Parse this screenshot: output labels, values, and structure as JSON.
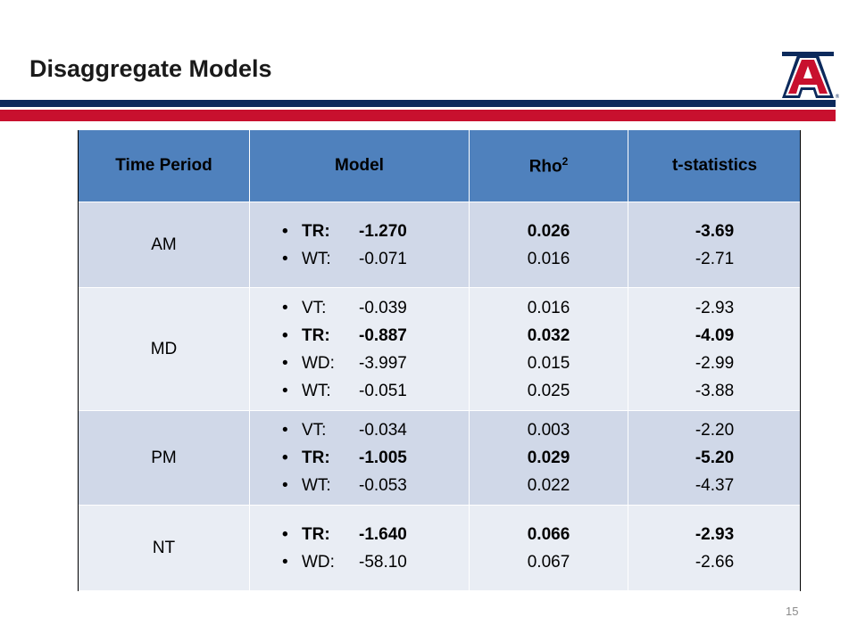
{
  "slide": {
    "title": "Disaggregate Models",
    "page_number": "15",
    "colors": {
      "navy": "#0c2a5c",
      "red": "#c8102e",
      "header_blue": "#4f81bd",
      "row_dark": "#d0d8e8",
      "row_light": "#e9edf4"
    },
    "logo": {
      "icon": "university-of-arizona-block-a-logo",
      "text": "A"
    }
  },
  "table": {
    "headers": {
      "time_period": "Time Period",
      "model": "Model",
      "rho": "Rho",
      "rho_sup": "2",
      "t_stat": "t-statistics"
    },
    "rows": [
      {
        "period": "AM",
        "entries": [
          {
            "label": "TR:",
            "coef": "-1.270",
            "rho": "0.026",
            "t": "-3.69",
            "bold": true
          },
          {
            "label": "WT:",
            "coef": "-0.071",
            "rho": "0.016",
            "t": "-2.71",
            "bold": false
          }
        ]
      },
      {
        "period": "MD",
        "entries": [
          {
            "label": "VT:",
            "coef": "-0.039",
            "rho": "0.016",
            "t": "-2.93",
            "bold": false
          },
          {
            "label": "TR:",
            "coef": "-0.887",
            "rho": "0.032",
            "t": "-4.09",
            "bold": true
          },
          {
            "label": "WD:",
            "coef": "-3.997",
            "rho": "0.015",
            "t": "-2.99",
            "bold": false
          },
          {
            "label": "WT:",
            "coef": "-0.051",
            "rho": "0.025",
            "t": "-3.88",
            "bold": false
          }
        ]
      },
      {
        "period": "PM",
        "entries": [
          {
            "label": "VT:",
            "coef": "-0.034",
            "rho": "0.003",
            "t": "-2.20",
            "bold": false
          },
          {
            "label": "TR:",
            "coef": "-1.005",
            "rho": "0.029",
            "t": "-5.20",
            "bold": true
          },
          {
            "label": "WT:",
            "coef": "-0.053",
            "rho": "0.022",
            "t": "-4.37",
            "bold": false
          }
        ]
      },
      {
        "period": "NT",
        "entries": [
          {
            "label": "TR:",
            "coef": "-1.640",
            "rho": "0.066",
            "t": "-2.93",
            "bold": true
          },
          {
            "label": "WD:",
            "coef": "-58.10",
            "rho": "0.067",
            "t": "-2.66",
            "bold": false
          }
        ]
      }
    ]
  }
}
